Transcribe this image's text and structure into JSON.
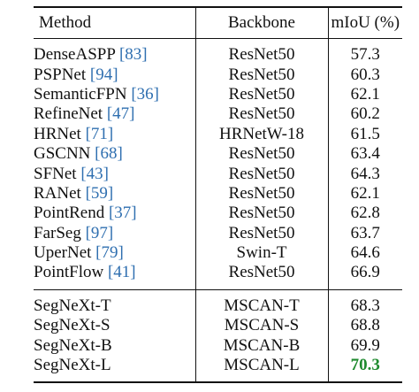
{
  "table": {
    "headers": {
      "method": "Method",
      "backbone": "Backbone",
      "miou": "mIoU (%)"
    },
    "groups": [
      {
        "rows": [
          {
            "method": "DenseASPP",
            "cite": "[83]",
            "backbone": "ResNet50",
            "miou": "57.3"
          },
          {
            "method": "PSPNet",
            "cite": "[94]",
            "backbone": "ResNet50",
            "miou": "60.3"
          },
          {
            "method": "SemanticFPN",
            "cite": "[36]",
            "backbone": "ResNet50",
            "miou": "62.1"
          },
          {
            "method": "RefineNet",
            "cite": "[47]",
            "backbone": "ResNet50",
            "miou": "60.2"
          },
          {
            "method": "HRNet",
            "cite": "[71]",
            "backbone": "HRNetW-18",
            "miou": "61.5"
          },
          {
            "method": "GSCNN",
            "cite": "[68]",
            "backbone": "ResNet50",
            "miou": "63.4"
          },
          {
            "method": "SFNet",
            "cite": "[43]",
            "backbone": "ResNet50",
            "miou": "64.3"
          },
          {
            "method": "RANet",
            "cite": "[59]",
            "backbone": "ResNet50",
            "miou": "62.1"
          },
          {
            "method": "PointRend",
            "cite": "[37]",
            "backbone": "ResNet50",
            "miou": "62.8"
          },
          {
            "method": "FarSeg",
            "cite": "[97]",
            "backbone": "ResNet50",
            "miou": "63.7"
          },
          {
            "method": "UperNet",
            "cite": "[79]",
            "backbone": "Swin-T",
            "miou": "64.6"
          },
          {
            "method": "PointFlow",
            "cite": "[41]",
            "backbone": "ResNet50",
            "miou": "66.9"
          }
        ]
      },
      {
        "rows": [
          {
            "method": "SegNeXt-T",
            "cite": "",
            "backbone": "MSCAN-T",
            "miou": "68.3"
          },
          {
            "method": "SegNeXt-S",
            "cite": "",
            "backbone": "MSCAN-S",
            "miou": "68.8"
          },
          {
            "method": "SegNeXt-B",
            "cite": "",
            "backbone": "MSCAN-B",
            "miou": "69.9"
          },
          {
            "method": "SegNeXt-L",
            "cite": "",
            "backbone": "MSCAN-L",
            "miou": "70.3",
            "best": true
          }
        ]
      }
    ],
    "colors": {
      "citation": "#2f6fb0",
      "best_value": "#1e8a2e",
      "text": "#111111"
    }
  }
}
